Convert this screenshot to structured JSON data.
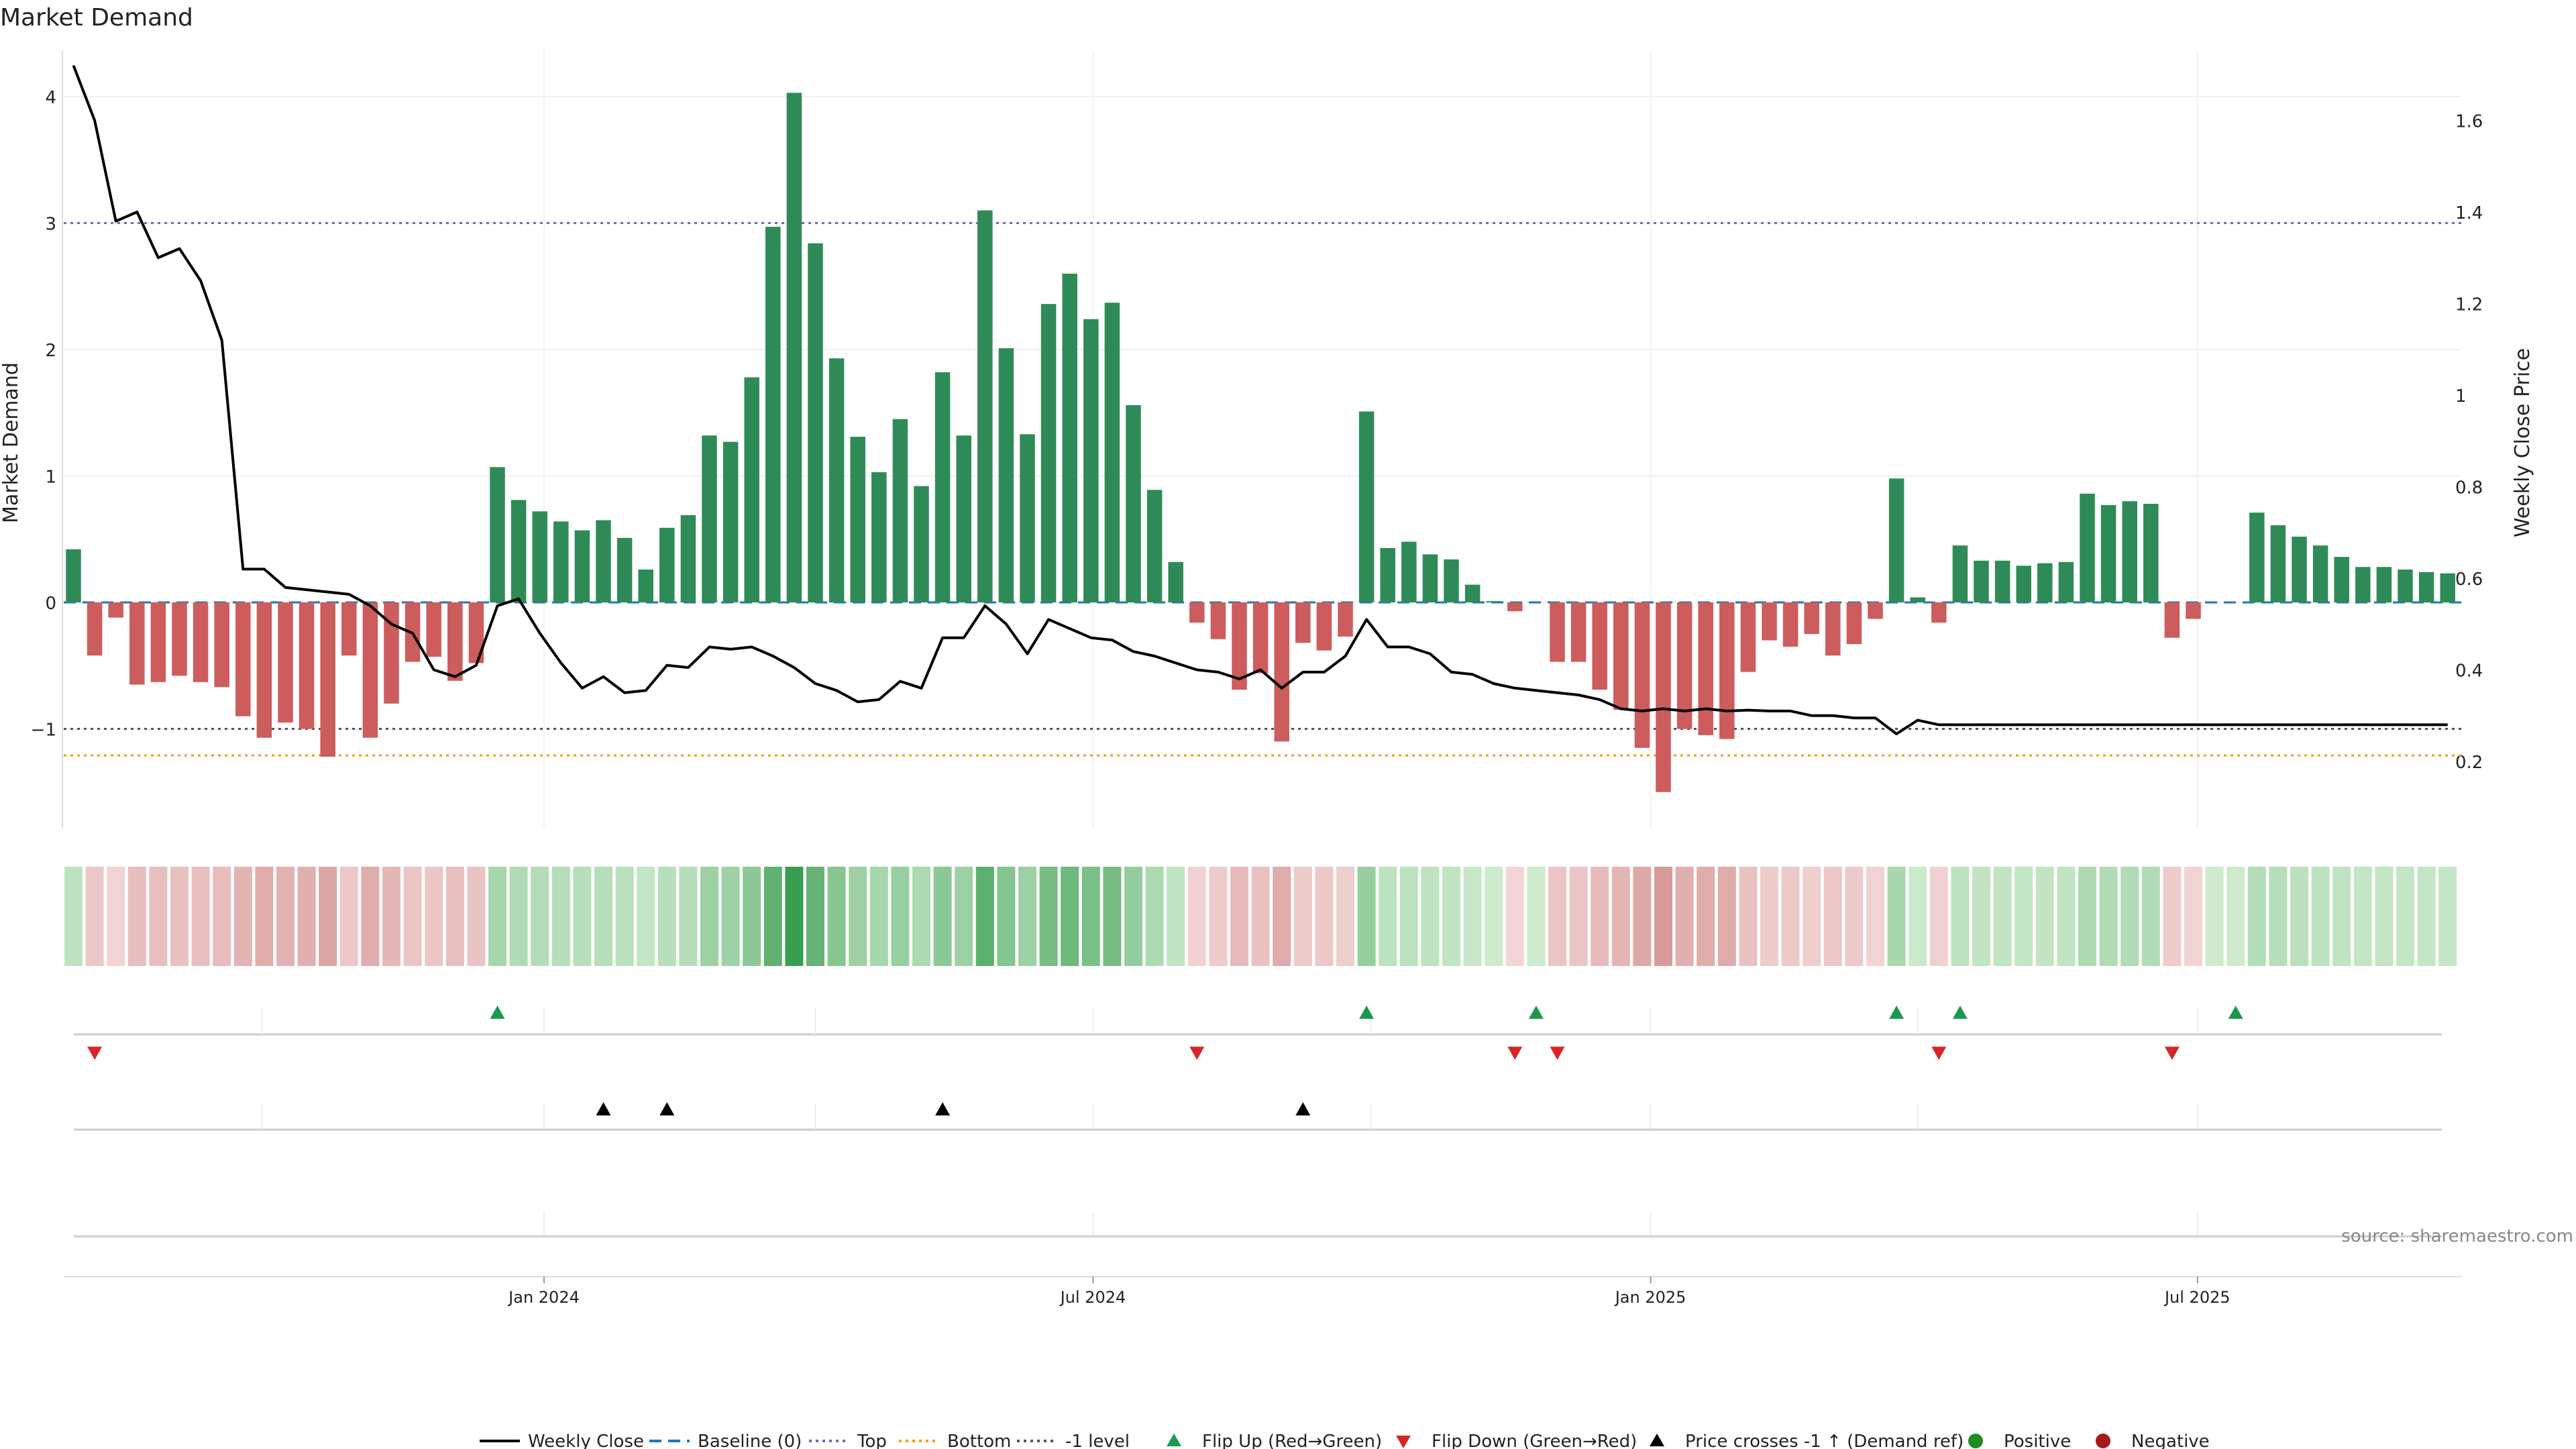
{
  "chart_data": {
    "type": "bar",
    "title": "Market Demand",
    "ylabel_left": "Market Demand",
    "ylabel_right": "Weekly Close Price",
    "ylim_left": [
      -1.8,
      4.4
    ],
    "ylim_right": [
      0.05,
      1.7
    ],
    "y_ticks_left": [
      -1,
      0,
      1,
      2,
      3,
      4
    ],
    "y_tick_labels_left": [
      "−1",
      "0",
      "1",
      "2",
      "3",
      "4"
    ],
    "y_ticks_right": [
      0.2,
      0.4,
      0.6,
      0.8,
      1.0,
      1.2,
      1.4,
      1.6
    ],
    "y_tick_labels_right": [
      "0.2",
      "0.4",
      "0.6",
      "0.8",
      "1",
      "1.2",
      "1.4",
      "1.6"
    ],
    "x_start_week_index": 0,
    "x_ticks": [
      {
        "label": "Jan 2024",
        "week": 22.2
      },
      {
        "label": "Jul 2024",
        "week": 48.1
      },
      {
        "label": "Jan 2025",
        "week": 74.4
      },
      {
        "label": "Jul 2025",
        "week": 100.2
      }
    ],
    "reference_lines": {
      "top": 3.0,
      "bottom": -1.21,
      "minus_one": -1.0,
      "baseline": 0
    },
    "demand": [
      0.42,
      -0.42,
      -0.12,
      -0.65,
      -0.63,
      -0.58,
      -0.63,
      -0.67,
      -0.9,
      -1.07,
      -0.95,
      -1.0,
      -1.22,
      -0.42,
      -1.07,
      -0.8,
      -0.47,
      -0.43,
      -0.62,
      -0.48,
      1.07,
      0.81,
      0.72,
      0.64,
      0.57,
      0.65,
      0.51,
      0.26,
      0.59,
      0.69,
      1.32,
      1.27,
      1.78,
      2.97,
      4.03,
      2.84,
      1.93,
      1.31,
      1.03,
      1.45,
      0.92,
      1.82,
      1.32,
      3.1,
      2.01,
      1.33,
      2.36,
      2.6,
      2.24,
      2.37,
      1.56,
      0.89,
      0.32,
      -0.16,
      -0.29,
      -0.69,
      -0.56,
      -1.1,
      -0.32,
      -0.38,
      -0.27,
      1.51,
      0.43,
      0.48,
      0.38,
      0.34,
      0.14,
      0.01,
      -0.07,
      0,
      -0.47,
      -0.47,
      -0.69,
      -0.85,
      -1.15,
      -1.5,
      -1.0,
      -1.05,
      -1.08,
      -0.55,
      -0.3,
      -0.35,
      -0.25,
      -0.42,
      -0.33,
      -0.13,
      0.98,
      0.04,
      -0.16,
      0.45,
      0.33,
      0.33,
      0.29,
      0.31,
      0.32,
      0.86,
      0.77,
      0.8,
      0.78,
      -0.28,
      -0.13,
      0,
      0,
      0.71,
      0.61,
      0.52,
      0.45,
      0.36,
      0.28,
      0.28,
      0.26,
      0.24,
      0.23
    ],
    "price": [
      1.72,
      1.6,
      1.38,
      1.4,
      1.3,
      1.32,
      1.25,
      1.12,
      0.62,
      0.62,
      0.58,
      0.575,
      0.57,
      0.565,
      0.54,
      0.5,
      0.48,
      0.4,
      0.385,
      0.41,
      0.54,
      0.555,
      0.48,
      0.415,
      0.36,
      0.385,
      0.35,
      0.355,
      0.41,
      0.405,
      0.45,
      0.445,
      0.45,
      0.43,
      0.405,
      0.37,
      0.355,
      0.33,
      0.335,
      0.375,
      0.36,
      0.47,
      0.47,
      0.54,
      0.5,
      0.435,
      0.51,
      0.49,
      0.47,
      0.465,
      0.44,
      0.43,
      0.415,
      0.4,
      0.395,
      0.38,
      0.4,
      0.36,
      0.395,
      0.395,
      0.43,
      0.51,
      0.45,
      0.45,
      0.435,
      0.395,
      0.39,
      0.37,
      0.36,
      0.355,
      0.35,
      0.345,
      0.335,
      0.315,
      0.31,
      0.315,
      0.31,
      0.315,
      0.31,
      0.312,
      0.31,
      0.31,
      0.3,
      0.3,
      0.295,
      0.295,
      0.26,
      0.29,
      0.28,
      0.28,
      0.28,
      0.28,
      0.28,
      0.28,
      0.28,
      0.28,
      0.28,
      0.28,
      0.28,
      0.28,
      0.28,
      0.28,
      0.28,
      0.28,
      0.28,
      0.28,
      0.28,
      0.28,
      0.28,
      0.28,
      0.28,
      0.28,
      0.28
    ],
    "flip_up_weeks": [
      20,
      61,
      69,
      86,
      89,
      102
    ],
    "flip_down_weeks": [
      1,
      53,
      68,
      70,
      88,
      99
    ],
    "price_cross_weeks": [
      25,
      28,
      41,
      58
    ],
    "colors": {
      "positive": "#2e8b57",
      "negative": "#cd5c5c",
      "price_line": "#000000",
      "baseline": "#1f77b4",
      "top": "#7b68b5",
      "bottom": "#ff9900",
      "minus_one": "#555555",
      "flip_up": "#1a9850",
      "flip_down": "#d62728",
      "price_cross": "#000000",
      "positive_dot": "#228b22",
      "negative_dot": "#a31b1b"
    },
    "legend": [
      {
        "key": "weekly-close",
        "label": "Weekly Close"
      },
      {
        "key": "baseline",
        "label": "Baseline (0)"
      },
      {
        "key": "top",
        "label": "Top"
      },
      {
        "key": "bottom",
        "label": "Bottom"
      },
      {
        "key": "minus-one",
        "label": "-1 level"
      },
      {
        "key": "flip-up",
        "label": "Flip Up (Red→Green)"
      },
      {
        "key": "flip-down",
        "label": "Flip Down (Green→Red)"
      },
      {
        "key": "price-cross",
        "label": "Price crosses -1 ↑ (Demand ref)"
      },
      {
        "key": "positive",
        "label": "Positive"
      },
      {
        "key": "negative",
        "label": "Negative"
      }
    ],
    "legend_position": "bottom-center",
    "source_note": "source: sharemaestro.com"
  }
}
